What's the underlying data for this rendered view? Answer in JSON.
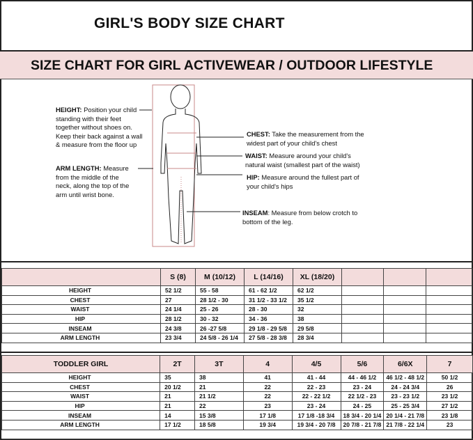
{
  "title": "GIRL'S BODY SIZE CHART",
  "subtitle": "SIZE CHART FOR GIRL ACTIVEWEAR / OUTDOOR LIFESTYLE",
  "notes": {
    "height": {
      "label": "HEIGHT:",
      "text": " Position your child standing with their feet together without shoes on. Keep their back against a wall & measure from the floor up"
    },
    "arm": {
      "label": "ARM LENGTH:",
      "text": "  Measure from the middle of the neck, along the top of the arm until wrist bone."
    },
    "chest": {
      "label": "CHEST:",
      "text": " Take the measurement from the widest part of your child's chest"
    },
    "waist": {
      "label": "WAIST:",
      "text": " Measure around your child's natural waist (smallest part of the waist)"
    },
    "hip": {
      "label": "HIP:",
      "text": " Measure around the fullest part of your child's hips"
    },
    "inseam": {
      "label": "INSEAM",
      "text": ": Measure from below crotch to bottom of the leg."
    }
  },
  "girl_table": {
    "corner": "",
    "headers": [
      "S (8)",
      "M (10/12)",
      "L (14/16)",
      "XL (18/20)",
      "",
      "",
      ""
    ],
    "rows": [
      {
        "label": "HEIGHT",
        "values": [
          "52 1/2",
          "55 - 58",
          "61 -  62 1/2",
          "62 1/2",
          "",
          "",
          ""
        ]
      },
      {
        "label": "CHEST",
        "values": [
          "27",
          "28 1/2 - 30",
          "31 1/2 - 33 1/2",
          "35 1/2",
          "",
          "",
          ""
        ]
      },
      {
        "label": "WAIST",
        "values": [
          "24 1/4",
          "25  - 26",
          "28 - 30",
          "32",
          "",
          "",
          ""
        ]
      },
      {
        "label": "HIP",
        "values": [
          "28 1/2",
          "30 - 32",
          "34 - 36",
          "38",
          "",
          "",
          ""
        ]
      },
      {
        "label": "INSEAM",
        "values": [
          "24 3/8",
          "26 -27 5/8",
          "29 1/8 - 29 5/8",
          "29 5/8",
          "",
          "",
          ""
        ]
      },
      {
        "label": "ARM LENGTH",
        "values": [
          "23 3/4",
          "24 5/8 - 26 1/4",
          "27 5/8  - 28 3/8",
          "28 3/4",
          "",
          "",
          ""
        ]
      }
    ]
  },
  "toddler_table": {
    "corner": "TODDLER GIRL",
    "headers": [
      "2T",
      "3T",
      "4",
      "4/5",
      "5/6",
      "6/6X",
      "7"
    ],
    "rows": [
      {
        "label": "HEIGHT",
        "values": [
          "35",
          "38",
          "41",
          "41 - 44",
          "44  -  46 1/2",
          "46 1/2 - 48 1/2",
          "50 1/2"
        ]
      },
      {
        "label": "CHEST",
        "values": [
          "20 1/2",
          "21",
          "22",
          "22 - 23",
          "23 - 24",
          "24 -  24 3/4",
          "26"
        ]
      },
      {
        "label": "WAIST",
        "values": [
          "21",
          "21 1/2",
          "22",
          "22 - 22 1/2",
          "22 1/2 - 23",
          "23 - 23 1/2",
          "23 1/2"
        ]
      },
      {
        "label": "HIP",
        "values": [
          "21",
          "22",
          "23",
          "23 - 24",
          "24 - 25",
          "25 - 25 3/4",
          "27 1/2"
        ]
      },
      {
        "label": "INSEAM",
        "values": [
          "14",
          "15 3/8",
          "17 1/8",
          "17 1/8 -18 3/4",
          "18 3/4 - 20 1/4",
          "20 1/4 - 21 7/8",
          "23 1/8"
        ]
      },
      {
        "label": "ARM LENGTH",
        "values": [
          "17 1/2",
          "18 5/8",
          "19 3/4",
          "19 3/4 - 20  7/8",
          "20 7/8 - 21 7/8",
          "21 7/8  - 22 1/4",
          "23"
        ]
      }
    ]
  },
  "colors": {
    "band": "#f3dcdc",
    "measure_line": "#c98a8a"
  }
}
